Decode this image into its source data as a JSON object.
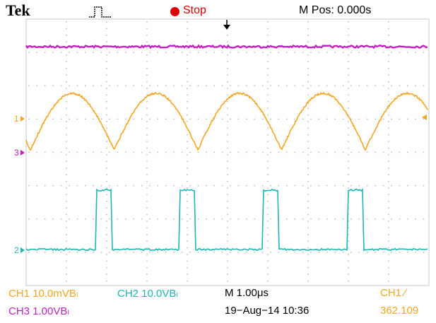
{
  "header": {
    "brand": "Tek",
    "run_state": "Stop",
    "run_state_color": "#d80000",
    "horizontal_position": "M Pos: 0.000s"
  },
  "channels": {
    "ch1": {
      "marker": "1",
      "color": "#f5a623"
    },
    "ch2": {
      "marker": "2",
      "color": "#1fb5b5"
    },
    "ch3": {
      "marker": "3",
      "color": "#c020c0"
    }
  },
  "status": {
    "ch1_scale": "CH1  10.0mVBₗ",
    "ch2_scale": "CH2  10.0VBₗ",
    "ch3_scale": "CH3  1.00VBₗ",
    "timebase": "M 1.00μs",
    "trigger": "CH1  ∕",
    "datetime": "19−Aug−14 10:36",
    "frequency": "362.109"
  },
  "icons": {
    "trigger_status": "acquisition-pulse-icon",
    "trigger_position": "trigger-position-arrow-icon"
  }
}
